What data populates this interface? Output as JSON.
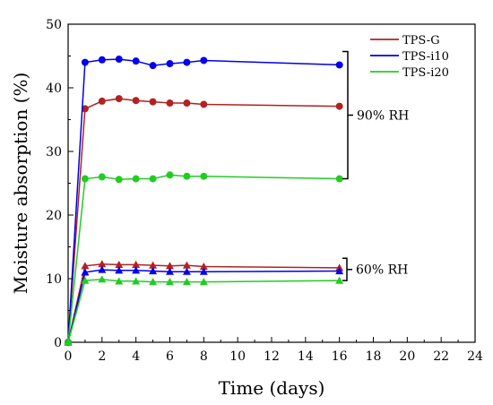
{
  "chart_data": {
    "type": "line",
    "xlabel": "Time (days)",
    "ylabel": "Moisture absorption (%)",
    "xlim": [
      0,
      24
    ],
    "ylim": [
      0,
      50
    ],
    "xticks": [
      0,
      2,
      4,
      6,
      8,
      10,
      12,
      14,
      16,
      18,
      20,
      22,
      24
    ],
    "yticks": [
      0,
      10,
      20,
      30,
      40,
      50
    ],
    "grid": false,
    "legend_position": "top-right",
    "series": [
      {
        "name": "TPS-G",
        "color": "#b22222",
        "group": "90% RH",
        "marker": "circle",
        "x": [
          0,
          1,
          2,
          3,
          4,
          5,
          6,
          7,
          8,
          16
        ],
        "y": [
          0,
          36.7,
          37.9,
          38.3,
          38.0,
          37.8,
          37.6,
          37.6,
          37.4,
          37.1
        ]
      },
      {
        "name": "TPS-i10",
        "color": "#0000ee",
        "group": "90% RH",
        "marker": "circle",
        "x": [
          0,
          1,
          2,
          3,
          4,
          5,
          6,
          7,
          8,
          16
        ],
        "y": [
          0,
          44.0,
          44.4,
          44.5,
          44.2,
          43.5,
          43.8,
          44.0,
          44.3,
          43.6
        ]
      },
      {
        "name": "TPS-i20",
        "color": "#22cc22",
        "group": "90% RH",
        "marker": "circle",
        "x": [
          0,
          1,
          2,
          3,
          4,
          5,
          6,
          7,
          8,
          16
        ],
        "y": [
          0,
          25.7,
          26.0,
          25.6,
          25.7,
          25.7,
          26.3,
          26.1,
          26.1,
          25.7
        ]
      },
      {
        "name": "TPS-G",
        "color": "#b22222",
        "group": "60% RH",
        "marker": "triangle",
        "x": [
          0,
          1,
          2,
          3,
          4,
          5,
          6,
          7,
          8,
          16
        ],
        "y": [
          0,
          12.0,
          12.3,
          12.2,
          12.2,
          12.1,
          12.0,
          12.1,
          11.9,
          11.7
        ]
      },
      {
        "name": "TPS-i10",
        "color": "#0000ee",
        "group": "60% RH",
        "marker": "triangle",
        "x": [
          0,
          1,
          2,
          3,
          4,
          5,
          6,
          7,
          8,
          16
        ],
        "y": [
          0,
          11.0,
          11.4,
          11.3,
          11.3,
          11.2,
          11.1,
          11.1,
          11.1,
          11.2
        ]
      },
      {
        "name": "TPS-i20",
        "color": "#22cc22",
        "group": "60% RH",
        "marker": "triangle",
        "x": [
          0,
          1,
          2,
          3,
          4,
          5,
          6,
          7,
          8,
          16
        ],
        "y": [
          0,
          9.7,
          9.9,
          9.6,
          9.6,
          9.5,
          9.5,
          9.5,
          9.5,
          9.7
        ]
      }
    ],
    "legend": [
      {
        "label": "TPS-G",
        "color": "#b22222"
      },
      {
        "label": "TPS-i10",
        "color": "#0000ee"
      },
      {
        "label": "TPS-i20",
        "color": "#22cc22"
      }
    ],
    "annotations": [
      {
        "text": "90% RH",
        "y_from": 25.7,
        "y_to": 45.7
      },
      {
        "text": "60% RH",
        "y_from": 9.7,
        "y_to": 13.2
      }
    ]
  }
}
